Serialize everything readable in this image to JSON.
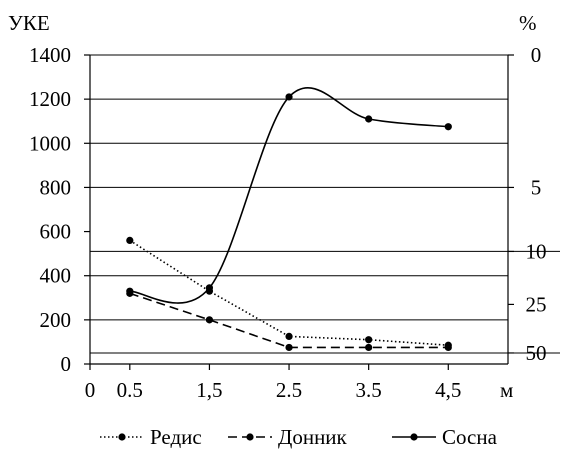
{
  "chart_data": {
    "type": "line",
    "y_left": {
      "label": "УКЕ",
      "min": 0,
      "max": 1400,
      "ticks": [
        0,
        200,
        400,
        600,
        800,
        1000,
        1200,
        1400
      ],
      "tick_labels": [
        "0",
        "200",
        "400",
        "600",
        "800",
        "1000",
        "1200",
        "1400"
      ]
    },
    "y_right": {
      "label": "%",
      "tick_labels": [
        {
          "text": "0",
          "uke": 1400
        },
        {
          "text": "5",
          "uke": 800
        },
        {
          "text": "10",
          "uke": 510
        },
        {
          "text": "25",
          "uke": 270
        },
        {
          "text": "50",
          "uke": 50
        }
      ]
    },
    "x_axis": {
      "label": "м",
      "min": 0,
      "max": 5.25,
      "ticks": [
        0,
        0.5,
        1.5,
        2.5,
        3.5,
        4.5
      ],
      "tick_labels": [
        "0",
        "0.5",
        "1,5",
        "2.5",
        "3.5",
        "4,5"
      ]
    },
    "gridlines_uke": [
      200,
      400,
      800,
      1000,
      1200,
      1400
    ],
    "reference_lines_uke": [
      510,
      50
    ],
    "series": [
      {
        "name": "Редис",
        "dash": "dotted",
        "smooth": false,
        "x": [
          0.5,
          1.5,
          2.5,
          3.5,
          4.5
        ],
        "y": [
          560,
          330,
          125,
          110,
          85
        ]
      },
      {
        "name": "Донник",
        "dash": "dashed",
        "smooth": false,
        "x": [
          0.5,
          1.5,
          2.5,
          3.5,
          4.5
        ],
        "y": [
          320,
          200,
          75,
          75,
          75
        ]
      },
      {
        "name": "Сосна",
        "dash": "solid",
        "smooth": true,
        "x": [
          0.5,
          1.5,
          2.5,
          3.5,
          4.5
        ],
        "y": [
          330,
          345,
          1210,
          1110,
          1075
        ]
      }
    ],
    "legend": {
      "position": "bottom"
    }
  }
}
